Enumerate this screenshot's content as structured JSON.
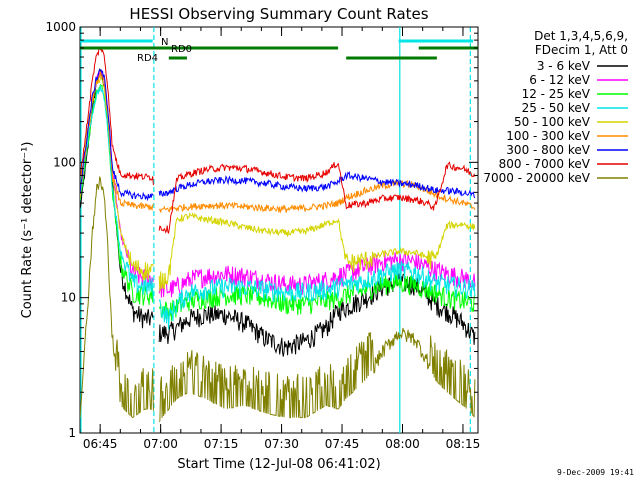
{
  "chart_data": {
    "type": "line",
    "title": "HESSI Observing Summary Count Rates",
    "xlabel": "Start Time (12-Jul-08 06:41:02)",
    "ylabel": "Count Rate (s⁻¹ detector⁻¹)",
    "yscale": "log",
    "xlim_min": [
      -1.03,
      97.7
    ],
    "ylim": [
      1,
      1000
    ],
    "x_tick_labels": [
      "06:45",
      "07:00",
      "07:15",
      "07:30",
      "07:45",
      "08:00",
      "08:15"
    ],
    "x_tick_values_min": [
      3.97,
      18.97,
      33.97,
      48.97,
      63.97,
      78.97,
      93.97
    ],
    "y_tick_labels": [
      "1",
      "10",
      "100",
      "1000"
    ],
    "y_tick_values": [
      1,
      10,
      100,
      1000
    ],
    "legend_header": [
      "Det 1,3,4,5,6,9,",
      "FDecim 1, Att 0"
    ],
    "legend_position": "right",
    "footer_date": "9-Dec-2009 19:41",
    "flag_labels": [
      "N",
      "RD0",
      "RD4"
    ],
    "flag_colors": {
      "N": "#00e5e5",
      "RD0": "#007a00",
      "RD4": "#007a00"
    },
    "flag_intervals_min": {
      "N": [
        [
          -1.0,
          17.0
        ],
        [
          78.0,
          96.5
        ]
      ],
      "RD0": [
        [
          -1.0,
          63.0
        ],
        [
          83.0,
          97.7
        ]
      ],
      "RD4": [
        [
          21.0,
          25.5
        ],
        [
          65.0,
          87.5
        ]
      ]
    },
    "vertical_markers_min": {
      "solid_cyan": [
        -0.8,
        78.3
      ],
      "dashed_cyan": [
        17.3,
        95.8
      ]
    },
    "data_gaps_min": [
      [
        17.3,
        18.5
      ]
    ],
    "series": [
      {
        "name": "3 - 6 keV",
        "color": "#000000",
        "x": [
          -1,
          0.5,
          2,
          3,
          4,
          5,
          6,
          7,
          9,
          12,
          15,
          17,
          18.5,
          21,
          23,
          26,
          30,
          35,
          40,
          45,
          50,
          55,
          60,
          63,
          65,
          70,
          74,
          78,
          82,
          85,
          87,
          90,
          94,
          97
        ],
        "y": [
          45,
          100,
          240,
          380,
          480,
          370,
          190,
          70,
          16,
          8,
          7,
          7,
          5.5,
          5.5,
          6,
          7,
          7.5,
          7.5,
          6.5,
          5,
          4.3,
          4.8,
          6,
          8,
          8.5,
          10,
          12,
          13,
          12.5,
          10.5,
          9,
          8,
          6.5,
          5
        ]
      },
      {
        "name": "6 - 12 keV",
        "color": "#ff00ff",
        "x": [
          -1,
          0.5,
          2,
          3,
          4,
          5,
          6,
          7,
          9,
          12,
          15,
          17,
          18.5,
          21,
          23,
          26,
          30,
          35,
          40,
          45,
          50,
          55,
          60,
          63,
          65,
          70,
          74,
          78,
          82,
          85,
          87,
          90,
          94,
          97
        ],
        "y": [
          60,
          130,
          290,
          400,
          480,
          400,
          220,
          90,
          30,
          15,
          14,
          14,
          12,
          11.5,
          12,
          13.5,
          14.5,
          15,
          14.5,
          13.5,
          12.5,
          12.5,
          13.5,
          14.5,
          15,
          17,
          18.5,
          19,
          18.5,
          17,
          16,
          15,
          14,
          13
        ]
      },
      {
        "name": "12 - 25 keV",
        "color": "#00ff00",
        "x": [
          -1,
          0.5,
          2,
          3,
          4,
          5,
          6,
          7,
          9,
          12,
          15,
          17,
          18.5,
          21,
          23,
          26,
          30,
          35,
          40,
          45,
          50,
          55,
          60,
          63,
          65,
          70,
          74,
          78,
          82,
          85,
          87,
          90,
          94,
          97
        ],
        "y": [
          50,
          110,
          230,
          320,
          380,
          310,
          160,
          60,
          18,
          11,
          10.5,
          10.5,
          8.5,
          8,
          8.5,
          9.5,
          10,
          10.5,
          10.5,
          10,
          9,
          9,
          9.5,
          10,
          10.5,
          11.5,
          12.5,
          13,
          12.5,
          11.5,
          11,
          10,
          9.5,
          9
        ]
      },
      {
        "name": "25 - 50 keV",
        "color": "#00e5e5",
        "x": [
          -1,
          0.5,
          2,
          3,
          4,
          5,
          6,
          7,
          9,
          12,
          15,
          17,
          18.5,
          21,
          23,
          26,
          30,
          35,
          40,
          45,
          50,
          55,
          60,
          63,
          65,
          70,
          74,
          78,
          82,
          85,
          87,
          90,
          94,
          97
        ],
        "y": [
          55,
          120,
          230,
          310,
          360,
          300,
          160,
          65,
          22,
          13,
          12,
          12,
          9,
          7,
          9,
          11,
          11.5,
          12,
          12,
          11.5,
          11,
          11,
          11.5,
          12,
          12.5,
          13.5,
          15,
          16,
          15.5,
          14,
          13,
          12.5,
          12,
          11.5
        ]
      },
      {
        "name": "50 - 100 keV",
        "color": "#d4d400",
        "x": [
          -1,
          0.5,
          2,
          3,
          4,
          5,
          6,
          7,
          9,
          12,
          15,
          17,
          18.5,
          21,
          23,
          26,
          30,
          35,
          40,
          45,
          50,
          55,
          60,
          63,
          65,
          70,
          74,
          78,
          82,
          85,
          87,
          90,
          94,
          97
        ],
        "y": [
          65,
          150,
          290,
          380,
          420,
          350,
          190,
          80,
          30,
          17,
          16,
          16,
          13,
          15,
          38,
          40,
          38,
          36,
          33,
          31,
          30,
          31,
          35,
          38,
          18,
          19,
          21,
          22,
          21.5,
          20,
          19,
          34,
          35,
          33
        ]
      },
      {
        "name": "100 - 300 keV",
        "color": "#ff8c00",
        "x": [
          -1,
          0.5,
          2,
          3,
          4,
          5,
          6,
          7,
          9,
          12,
          15,
          17,
          18.5,
          21,
          23,
          26,
          30,
          35,
          40,
          45,
          50,
          55,
          60,
          63,
          65,
          70,
          74,
          78,
          82,
          85,
          87,
          90,
          94,
          97
        ],
        "y": [
          58,
          130,
          280,
          380,
          460,
          390,
          210,
          80,
          50,
          48,
          47,
          47,
          44,
          45,
          46,
          47,
          48,
          48,
          47,
          46,
          45,
          46,
          48,
          50,
          55,
          62,
          67,
          70,
          68,
          62,
          58,
          54,
          50,
          46
        ]
      },
      {
        "name": "300 - 800 keV",
        "color": "#0000ff",
        "x": [
          -1,
          0.5,
          2,
          3,
          4,
          5,
          6,
          7,
          9,
          12,
          15,
          17,
          18.5,
          21,
          23,
          26,
          30,
          35,
          40,
          45,
          50,
          55,
          60,
          63,
          65,
          70,
          74,
          78,
          82,
          85,
          87,
          90,
          94,
          97
        ],
        "y": [
          62,
          140,
          300,
          410,
          500,
          420,
          230,
          90,
          60,
          57,
          56,
          56,
          58,
          60,
          64,
          68,
          72,
          74,
          73,
          70,
          66,
          64,
          66,
          72,
          80,
          76,
          72,
          70,
          68,
          65,
          62,
          62,
          60,
          57
        ]
      },
      {
        "name": "800 - 7000 keV",
        "color": "#e60000",
        "x": [
          -1,
          0.5,
          2,
          3,
          4,
          5,
          6,
          7,
          9,
          12,
          15,
          17,
          18.5,
          21,
          23,
          26,
          30,
          35,
          40,
          45,
          50,
          55,
          60,
          63,
          65,
          70,
          74,
          78,
          82,
          85,
          87,
          90,
          94,
          97
        ],
        "y": [
          78,
          170,
          400,
          600,
          720,
          600,
          330,
          130,
          82,
          80,
          78,
          78,
          33,
          32,
          75,
          82,
          88,
          92,
          90,
          84,
          78,
          76,
          84,
          100,
          48,
          50,
          54,
          55,
          53,
          50,
          46,
          95,
          90,
          80
        ]
      },
      {
        "name": "7000 - 20000 keV",
        "color": "#808000",
        "x": [
          -1,
          0.5,
          2,
          3,
          4,
          5,
          6,
          7,
          9,
          12,
          15,
          17,
          18.5,
          21,
          23,
          26,
          30,
          35,
          40,
          45,
          50,
          55,
          60,
          63,
          65,
          70,
          74,
          78,
          82,
          85,
          87,
          90,
          94,
          97
        ],
        "y": [
          1.3,
          6,
          30,
          60,
          75,
          55,
          20,
          5,
          1.6,
          1.3,
          1.5,
          1.5,
          1.2,
          1.5,
          1.8,
          2,
          1.8,
          1.5,
          1.6,
          1.4,
          1.3,
          1.3,
          1.6,
          1.5,
          1.8,
          2.5,
          4,
          5.5,
          5,
          3.5,
          2.5,
          2,
          1.6,
          1.3
        ]
      }
    ]
  }
}
